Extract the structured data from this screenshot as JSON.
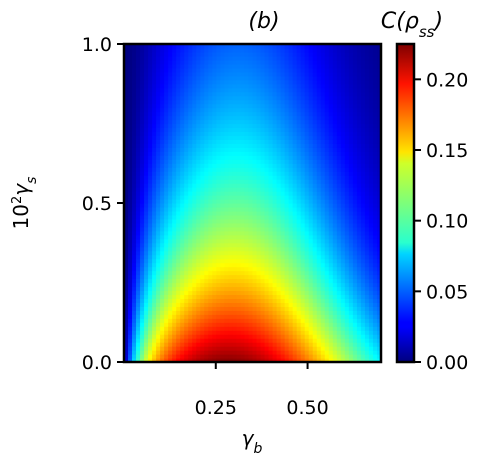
{
  "chart_data": {
    "type": "heatmap",
    "title": "(b)",
    "xlabel": "γ_b",
    "ylabel": "10²γ_s",
    "xlim": [
      0.0,
      0.7
    ],
    "ylim": [
      0.0,
      1.0
    ],
    "x_ticks": [
      0.25,
      0.5
    ],
    "x_tick_labels": [
      "0.25",
      "0.50"
    ],
    "y_ticks": [
      0.0,
      0.5,
      1.0
    ],
    "y_tick_labels": [
      "0.0",
      "0.5",
      "1.0"
    ],
    "colorbar": {
      "label": "C(ρ_ss)",
      "range": [
        0.0,
        0.225
      ],
      "ticks": [
        0.0,
        0.05,
        0.1,
        0.15,
        0.2
      ],
      "tick_labels": [
        "0.00",
        "0.05",
        "0.10",
        "0.15",
        "0.20"
      ],
      "colormap": "jet"
    },
    "sample_values": [
      {
        "x": 0.27,
        "y": 0.0,
        "value": 0.22
      },
      {
        "x": 0.3,
        "y": 0.1,
        "value": 0.16
      },
      {
        "x": 0.3,
        "y": 0.3,
        "value": 0.1
      },
      {
        "x": 0.3,
        "y": 0.5,
        "value": 0.06
      },
      {
        "x": 0.3,
        "y": 0.75,
        "value": 0.02
      },
      {
        "x": 0.3,
        "y": 1.0,
        "value": 0.0
      }
    ],
    "grid": false
  }
}
